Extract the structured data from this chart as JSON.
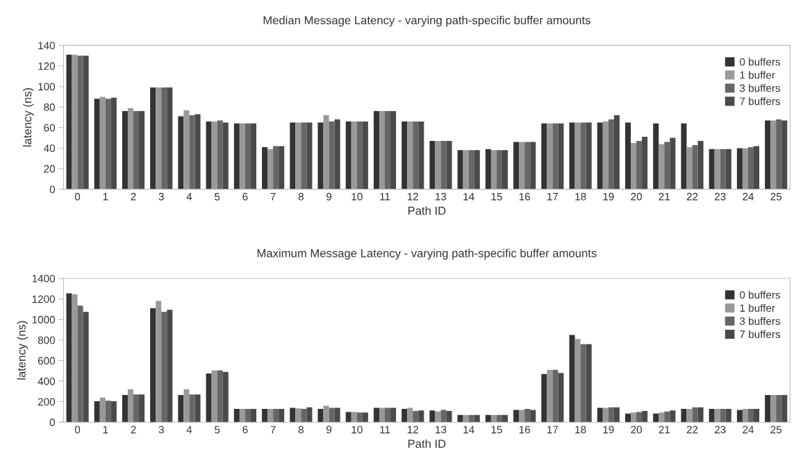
{
  "chart_data": [
    {
      "type": "bar",
      "title": "Median Message Latency - varying path-specific buffer amounts",
      "xlabel": "Path ID",
      "ylabel": "latency (ns)",
      "categories": [
        "0",
        "1",
        "2",
        "3",
        "4",
        "5",
        "6",
        "7",
        "8",
        "9",
        "10",
        "11",
        "12",
        "13",
        "14",
        "15",
        "16",
        "17",
        "18",
        "19",
        "20",
        "21",
        "22",
        "23",
        "24",
        "25"
      ],
      "ylim": [
        0,
        140
      ],
      "yticks": [
        0,
        20,
        40,
        60,
        80,
        100,
        120,
        140
      ],
      "grid": false,
      "legend": "top right",
      "series": [
        {
          "name": "0 buffers",
          "color": "#333333",
          "values": [
            131,
            88,
            76,
            99,
            71,
            66,
            64,
            41,
            65,
            65,
            66,
            76,
            66,
            47,
            38,
            39,
            46,
            64,
            65,
            65,
            65,
            64,
            64,
            39,
            40,
            67
          ]
        },
        {
          "name": "1 buffer",
          "color": "#999999",
          "values": [
            131,
            90,
            79,
            99,
            77,
            66,
            64,
            39,
            65,
            72,
            66,
            76,
            66,
            47,
            38,
            38,
            46,
            64,
            65,
            66,
            45,
            44,
            41,
            39,
            40,
            67
          ]
        },
        {
          "name": "3 buffers",
          "color": "#666666",
          "values": [
            130,
            88,
            76,
            99,
            72,
            67,
            64,
            42,
            65,
            66,
            66,
            76,
            66,
            47,
            38,
            38,
            46,
            64,
            65,
            68,
            47,
            46,
            43,
            39,
            41,
            68
          ]
        },
        {
          "name": "7 buffers",
          "color": "#4a4a4a",
          "values": [
            130,
            89,
            76,
            99,
            73,
            65,
            64,
            42,
            65,
            68,
            66,
            76,
            66,
            47,
            38,
            38,
            46,
            64,
            65,
            72,
            51,
            50,
            47,
            39,
            42,
            67
          ]
        }
      ]
    },
    {
      "type": "bar",
      "title": "Maximum Message Latency - varying path-specific buffer amounts",
      "xlabel": "Path ID",
      "ylabel": "latency (ns)",
      "categories": [
        "0",
        "1",
        "2",
        "3",
        "4",
        "5",
        "6",
        "7",
        "8",
        "9",
        "10",
        "11",
        "12",
        "13",
        "14",
        "15",
        "16",
        "17",
        "18",
        "19",
        "20",
        "21",
        "22",
        "23",
        "24",
        "25"
      ],
      "ylim": [
        0,
        1400
      ],
      "yticks": [
        0,
        200,
        400,
        600,
        800,
        1000,
        1200,
        1400
      ],
      "grid": false,
      "legend": "top right",
      "series": [
        {
          "name": "0 buffers",
          "color": "#333333",
          "values": [
            1255,
            205,
            265,
            1110,
            265,
            475,
            130,
            130,
            140,
            130,
            100,
            140,
            130,
            115,
            70,
            70,
            120,
            470,
            850,
            140,
            85,
            85,
            130,
            130,
            120,
            265
          ]
        },
        {
          "name": "1 buffer",
          "color": "#999999",
          "values": [
            1245,
            240,
            320,
            1180,
            320,
            505,
            130,
            130,
            135,
            160,
            100,
            140,
            140,
            105,
            70,
            70,
            120,
            510,
            810,
            140,
            95,
            95,
            130,
            130,
            130,
            265
          ]
        },
        {
          "name": "3 buffers",
          "color": "#666666",
          "values": [
            1135,
            210,
            270,
            1075,
            270,
            505,
            130,
            130,
            130,
            140,
            95,
            140,
            110,
            120,
            70,
            70,
            130,
            510,
            760,
            145,
            100,
            105,
            145,
            130,
            130,
            265
          ]
        },
        {
          "name": "7 buffers",
          "color": "#4a4a4a",
          "values": [
            1075,
            205,
            270,
            1095,
            270,
            490,
            130,
            130,
            145,
            140,
            95,
            140,
            115,
            110,
            70,
            70,
            120,
            480,
            760,
            145,
            110,
            115,
            145,
            130,
            130,
            265
          ]
        }
      ]
    }
  ]
}
